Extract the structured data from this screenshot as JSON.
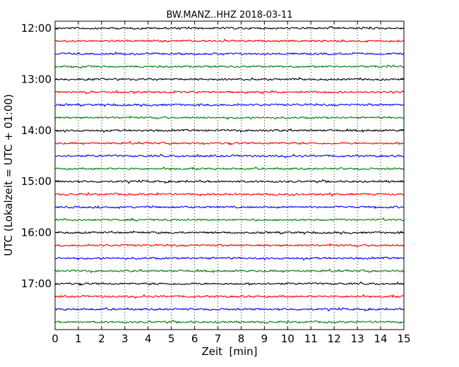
{
  "chart_data": {
    "type": "line",
    "title": "BW.MANZ..HHZ 2018-03-11",
    "xlabel": "Zeit  [min]",
    "ylabel": "UTC (Lokalzeit = UTC + 01:00)",
    "xlim": [
      0,
      15
    ],
    "x_ticks": [
      "0",
      "1",
      "2",
      "3",
      "4",
      "5",
      "6",
      "7",
      "8",
      "9",
      "10",
      "11",
      "12",
      "13",
      "14",
      "15"
    ],
    "y_ticks": [
      "12:00",
      "13:00",
      "14:00",
      "15:00",
      "16:00",
      "17:00"
    ],
    "grid": "vertical dotted at each minute",
    "trace_colors": [
      "#000000",
      "#ff0000",
      "#0000ff",
      "#007f00"
    ],
    "traces": [
      {
        "start": "12:00"
      },
      {
        "start": "12:15"
      },
      {
        "start": "12:30"
      },
      {
        "start": "12:45"
      },
      {
        "start": "13:00"
      },
      {
        "start": "13:15"
      },
      {
        "start": "13:30"
      },
      {
        "start": "13:45"
      },
      {
        "start": "14:00"
      },
      {
        "start": "14:15"
      },
      {
        "start": "14:30"
      },
      {
        "start": "14:45"
      },
      {
        "start": "15:00"
      },
      {
        "start": "15:15"
      },
      {
        "start": "15:30"
      },
      {
        "start": "15:45"
      },
      {
        "start": "16:00"
      },
      {
        "start": "16:15"
      },
      {
        "start": "16:30"
      },
      {
        "start": "16:45"
      },
      {
        "start": "17:00"
      },
      {
        "start": "17:15"
      },
      {
        "start": "17:30"
      },
      {
        "start": "17:45"
      }
    ]
  }
}
